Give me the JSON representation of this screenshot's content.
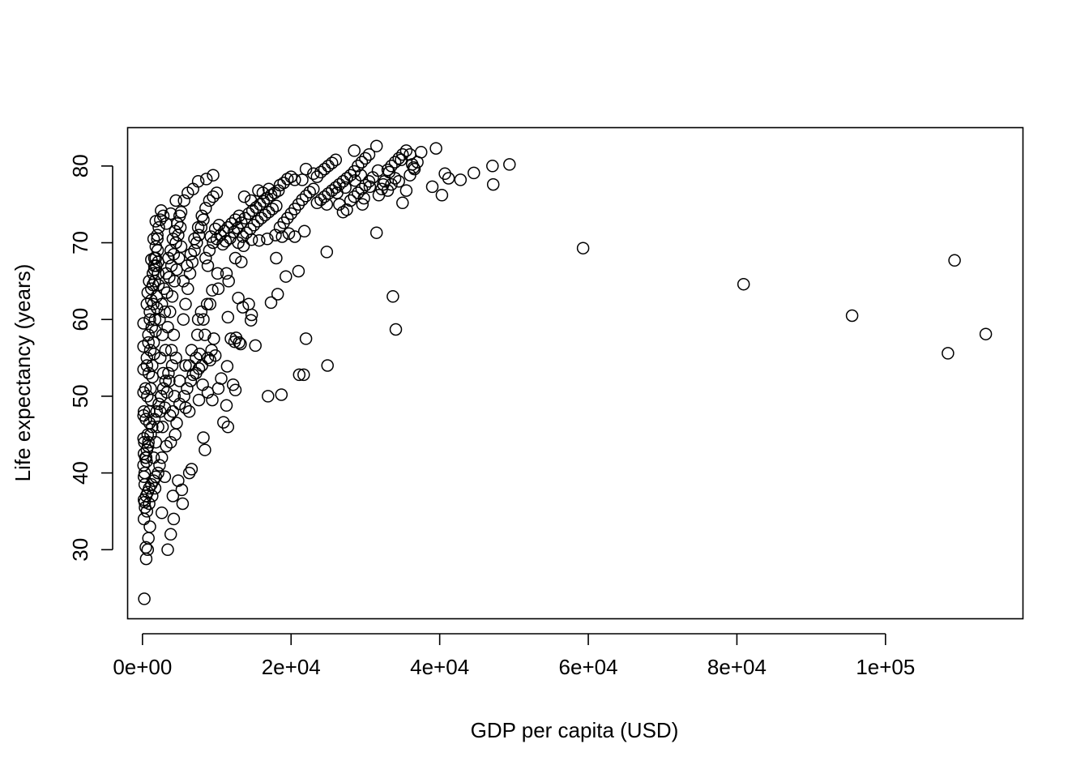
{
  "chart_data": {
    "type": "scatter",
    "title": "",
    "xlabel": "GDP per capita (USD)",
    "ylabel": "Life expectancy (years)",
    "xlim": [
      -2000,
      118500
    ],
    "ylim": [
      21,
      85
    ],
    "x_ticks": [
      0,
      20000,
      40000,
      60000,
      80000,
      100000
    ],
    "x_tick_labels": [
      "0e+00",
      "2e+04",
      "4e+04",
      "6e+04",
      "8e+04",
      "1e+05"
    ],
    "y_ticks": [
      30,
      40,
      50,
      60,
      70,
      80
    ],
    "y_tick_labels": [
      "30",
      "40",
      "50",
      "60",
      "70",
      "80"
    ],
    "grid": false,
    "legend": "none",
    "marker_color": "#000000",
    "points": [
      [
        241,
        23.6
      ],
      [
        500,
        28.8
      ],
      [
        700,
        30.0
      ],
      [
        450,
        30.3
      ],
      [
        3400,
        30.0
      ],
      [
        3800,
        32.0
      ],
      [
        800,
        31.5
      ],
      [
        1000,
        33.0
      ],
      [
        4200,
        34.0
      ],
      [
        2600,
        34.8
      ],
      [
        5400,
        36.0
      ],
      [
        300,
        36.2
      ],
      [
        500,
        37.0
      ],
      [
        700,
        37.5
      ],
      [
        900,
        38.0
      ],
      [
        1200,
        38.5
      ],
      [
        1500,
        39.0
      ],
      [
        1800,
        39.5
      ],
      [
        4100,
        37.0
      ],
      [
        5300,
        37.8
      ],
      [
        4800,
        39.0
      ],
      [
        3000,
        39.5
      ],
      [
        6300,
        40.0
      ],
      [
        6600,
        40.5
      ],
      [
        2300,
        41.0
      ],
      [
        400,
        42.0
      ],
      [
        600,
        43.0
      ],
      [
        800,
        44.0
      ],
      [
        1100,
        45.0
      ],
      [
        1300,
        46.0
      ],
      [
        1600,
        47.0
      ],
      [
        1900,
        48.0
      ],
      [
        2200,
        49.0
      ],
      [
        2500,
        50.0
      ],
      [
        2800,
        51.0
      ],
      [
        3100,
        52.0
      ],
      [
        3500,
        53.0
      ],
      [
        4000,
        54.0
      ],
      [
        4500,
        55.0
      ],
      [
        3800,
        44.0
      ],
      [
        4400,
        45.0
      ],
      [
        4600,
        46.5
      ],
      [
        4100,
        48.0
      ],
      [
        5000,
        49.0
      ],
      [
        5600,
        50.0
      ],
      [
        6000,
        51.0
      ],
      [
        6500,
        52.0
      ],
      [
        7200,
        53.0
      ],
      [
        8000,
        54.0
      ],
      [
        8400,
        43.0
      ],
      [
        8200,
        44.6
      ],
      [
        6300,
        48.0
      ],
      [
        5800,
        48.5
      ],
      [
        7600,
        49.5
      ],
      [
        8800,
        50.5
      ],
      [
        8100,
        51.5
      ],
      [
        9400,
        49.5
      ],
      [
        10200,
        51.0
      ],
      [
        10600,
        52.3
      ],
      [
        11300,
        48.8
      ],
      [
        10900,
        46.6
      ],
      [
        11500,
        46.0
      ],
      [
        12200,
        51.5
      ],
      [
        12500,
        50.8
      ],
      [
        11400,
        53.9
      ],
      [
        13200,
        56.8
      ],
      [
        13000,
        57.0
      ],
      [
        12400,
        57.1
      ],
      [
        12600,
        57.6
      ],
      [
        15200,
        56.6
      ],
      [
        11900,
        57.5
      ],
      [
        11500,
        60.3
      ],
      [
        14600,
        59.9
      ],
      [
        14700,
        60.6
      ],
      [
        14300,
        62.0
      ],
      [
        13500,
        61.6
      ],
      [
        12900,
        62.8
      ],
      [
        17300,
        62.2
      ],
      [
        18200,
        63.3
      ],
      [
        19300,
        65.6
      ],
      [
        21000,
        66.3
      ],
      [
        24800,
        68.8
      ],
      [
        18000,
        68.0
      ],
      [
        13300,
        67.5
      ],
      [
        11600,
        65.0
      ],
      [
        10100,
        66.0
      ],
      [
        9400,
        63.8
      ],
      [
        8700,
        62.0
      ],
      [
        7900,
        61.0
      ],
      [
        7500,
        60.0
      ],
      [
        8400,
        58.0
      ],
      [
        9600,
        57.5
      ],
      [
        9300,
        56.0
      ],
      [
        7700,
        55.5
      ],
      [
        7200,
        55.0
      ],
      [
        8800,
        55.0
      ],
      [
        6300,
        54.0
      ],
      [
        6800,
        52.8
      ],
      [
        7600,
        53.6
      ],
      [
        9100,
        54.7
      ],
      [
        9800,
        55.3
      ],
      [
        16900,
        50.0
      ],
      [
        18700,
        50.2
      ],
      [
        21100,
        52.8
      ],
      [
        21700,
        52.8
      ],
      [
        24900,
        54.0
      ],
      [
        22000,
        57.5
      ],
      [
        34100,
        58.7
      ],
      [
        33700,
        63.0
      ],
      [
        31500,
        71.3
      ],
      [
        59300,
        69.3
      ],
      [
        80900,
        64.6
      ],
      [
        95500,
        60.5
      ],
      [
        108400,
        55.6
      ],
      [
        109300,
        67.7
      ],
      [
        113500,
        58.1
      ],
      [
        200,
        34.0
      ],
      [
        350,
        35.5
      ],
      [
        600,
        35.0
      ],
      [
        900,
        36.0
      ],
      [
        1300,
        37.0
      ],
      [
        1700,
        38.0
      ],
      [
        2100,
        40.0
      ],
      [
        2600,
        42.0
      ],
      [
        3200,
        43.5
      ],
      [
        3700,
        47.5
      ],
      [
        4300,
        50.0
      ],
      [
        5000,
        52.0
      ],
      [
        5800,
        54.0
      ],
      [
        6600,
        56.0
      ],
      [
        7400,
        58.0
      ],
      [
        8200,
        60.0
      ],
      [
        9100,
        62.0
      ],
      [
        10200,
        64.0
      ],
      [
        11300,
        66.0
      ],
      [
        12500,
        68.0
      ],
      [
        300,
        40.0
      ],
      [
        500,
        42.0
      ],
      [
        700,
        45.0
      ],
      [
        900,
        48.0
      ],
      [
        1100,
        51.0
      ],
      [
        1300,
        54.0
      ],
      [
        1500,
        57.0
      ],
      [
        1700,
        60.0
      ],
      [
        1900,
        63.0
      ],
      [
        2100,
        66.0
      ],
      [
        250,
        44.0
      ],
      [
        450,
        47.0
      ],
      [
        650,
        50.0
      ],
      [
        850,
        53.0
      ],
      [
        1050,
        56.0
      ],
      [
        1250,
        59.0
      ],
      [
        1450,
        62.0
      ],
      [
        1650,
        65.0
      ],
      [
        1850,
        67.0
      ],
      [
        2050,
        69.0
      ],
      [
        200,
        48.0
      ],
      [
        400,
        51.0
      ],
      [
        600,
        54.0
      ],
      [
        800,
        57.0
      ],
      [
        1000,
        60.0
      ],
      [
        1200,
        62.5
      ],
      [
        1400,
        64.5
      ],
      [
        1600,
        66.5
      ],
      [
        1800,
        68.0
      ],
      [
        2000,
        70.5
      ],
      [
        300,
        38.5
      ],
      [
        550,
        41.5
      ],
      [
        750,
        43.5
      ],
      [
        950,
        46.5
      ],
      [
        1150,
        49.5
      ],
      [
        1350,
        52.5
      ],
      [
        1550,
        55.5
      ],
      [
        1750,
        58.5
      ],
      [
        1950,
        61.5
      ],
      [
        2150,
        64.5
      ],
      [
        2400,
        55.0
      ],
      [
        2700,
        58.0
      ],
      [
        3000,
        61.0
      ],
      [
        3300,
        63.5
      ],
      [
        3600,
        65.5
      ],
      [
        3900,
        67.0
      ],
      [
        4200,
        68.5
      ],
      [
        4500,
        70.0
      ],
      [
        4800,
        71.0
      ],
      [
        5100,
        72.0
      ],
      [
        2300,
        60.0
      ],
      [
        2600,
        62.0
      ],
      [
        2900,
        64.0
      ],
      [
        3200,
        66.0
      ],
      [
        3500,
        68.0
      ],
      [
        3800,
        69.0
      ],
      [
        4100,
        70.5
      ],
      [
        4400,
        71.5
      ],
      [
        4700,
        72.5
      ],
      [
        5000,
        73.5
      ],
      [
        2500,
        50.0
      ],
      [
        2800,
        53.0
      ],
      [
        3100,
        56.0
      ],
      [
        3400,
        59.0
      ],
      [
        3700,
        61.0
      ],
      [
        4000,
        63.0
      ],
      [
        4300,
        65.0
      ],
      [
        4600,
        66.5
      ],
      [
        4900,
        68.0
      ],
      [
        5200,
        69.5
      ],
      [
        1500,
        42.0
      ],
      [
        1800,
        44.0
      ],
      [
        2100,
        46.0
      ],
      [
        2400,
        48.0
      ],
      [
        2700,
        46.0
      ],
      [
        3000,
        48.5
      ],
      [
        3300,
        50.5
      ],
      [
        3600,
        52.0
      ],
      [
        3900,
        56.0
      ],
      [
        4200,
        58.0
      ],
      [
        5500,
        60.0
      ],
      [
        5800,
        62.0
      ],
      [
        6100,
        64.0
      ],
      [
        6400,
        66.0
      ],
      [
        6700,
        67.5
      ],
      [
        7000,
        69.0
      ],
      [
        7300,
        70.0
      ],
      [
        7600,
        71.0
      ],
      [
        7900,
        72.0
      ],
      [
        8200,
        73.0
      ],
      [
        5500,
        65.0
      ],
      [
        6000,
        67.0
      ],
      [
        6500,
        68.5
      ],
      [
        7000,
        70.5
      ],
      [
        7500,
        72.0
      ],
      [
        8000,
        73.5
      ],
      [
        8500,
        74.5
      ],
      [
        9000,
        75.5
      ],
      [
        9500,
        76.0
      ],
      [
        10000,
        76.5
      ],
      [
        5200,
        74.0
      ],
      [
        5600,
        75.5
      ],
      [
        6100,
        76.5
      ],
      [
        6800,
        77.0
      ],
      [
        7500,
        78.0
      ],
      [
        8600,
        78.3
      ],
      [
        9500,
        78.8
      ],
      [
        2500,
        74.2
      ],
      [
        3800,
        73.8
      ],
      [
        4500,
        75.5
      ],
      [
        1500,
        70.5
      ],
      [
        1800,
        72.8
      ],
      [
        2800,
        73.5
      ],
      [
        3200,
        72.5
      ],
      [
        2100,
        67.5
      ],
      [
        1600,
        67.0
      ],
      [
        1200,
        67.8
      ],
      [
        900,
        65.0
      ],
      [
        700,
        63.5
      ],
      [
        600,
        62.0
      ],
      [
        8500,
        68.0
      ],
      [
        9000,
        69.0
      ],
      [
        9500,
        70.0
      ],
      [
        10000,
        70.5
      ],
      [
        10500,
        71.0
      ],
      [
        11000,
        71.5
      ],
      [
        11500,
        72.0
      ],
      [
        12000,
        72.5
      ],
      [
        12500,
        73.0
      ],
      [
        13000,
        73.5
      ],
      [
        8800,
        67.0
      ],
      [
        9200,
        70.8
      ],
      [
        9800,
        71.8
      ],
      [
        10300,
        72.3
      ],
      [
        10800,
        69.8
      ],
      [
        11200,
        70.2
      ],
      [
        11800,
        70.6
      ],
      [
        12300,
        71.4
      ],
      [
        12800,
        71.9
      ],
      [
        13300,
        72.6
      ],
      [
        13800,
        73.2
      ],
      [
        14300,
        73.8
      ],
      [
        14800,
        74.2
      ],
      [
        15300,
        74.6
      ],
      [
        15800,
        75.0
      ],
      [
        16300,
        75.4
      ],
      [
        16800,
        75.8
      ],
      [
        17300,
        76.2
      ],
      [
        17800,
        76.5
      ],
      [
        18300,
        76.8
      ],
      [
        13500,
        70.8
      ],
      [
        14000,
        71.3
      ],
      [
        14500,
        71.8
      ],
      [
        15000,
        72.3
      ],
      [
        15500,
        72.8
      ],
      [
        16000,
        73.2
      ],
      [
        16500,
        73.6
      ],
      [
        17000,
        74.0
      ],
      [
        17500,
        74.4
      ],
      [
        18000,
        74.8
      ],
      [
        13700,
        76.0
      ],
      [
        14600,
        75.5
      ],
      [
        15600,
        76.8
      ],
      [
        16200,
        76.5
      ],
      [
        17000,
        77.0
      ],
      [
        18500,
        77.5
      ],
      [
        19000,
        77.8
      ],
      [
        19500,
        78.3
      ],
      [
        20000,
        78.6
      ],
      [
        20500,
        78.2
      ],
      [
        18500,
        72.0
      ],
      [
        19000,
        72.6
      ],
      [
        19500,
        73.2
      ],
      [
        20000,
        73.8
      ],
      [
        20500,
        74.4
      ],
      [
        21000,
        75.0
      ],
      [
        21500,
        75.6
      ],
      [
        22000,
        76.1
      ],
      [
        22500,
        76.6
      ],
      [
        23000,
        77.0
      ],
      [
        18800,
        70.8
      ],
      [
        19700,
        71.2
      ],
      [
        20500,
        70.8
      ],
      [
        21800,
        71.5
      ],
      [
        17900,
        71.0
      ],
      [
        16800,
        70.5
      ],
      [
        15700,
        70.3
      ],
      [
        14700,
        70.4
      ],
      [
        13600,
        69.6
      ],
      [
        12900,
        70.0
      ],
      [
        21500,
        78.2
      ],
      [
        22000,
        79.6
      ],
      [
        23000,
        79.0
      ],
      [
        23500,
        78.6
      ],
      [
        24000,
        79.2
      ],
      [
        24500,
        79.6
      ],
      [
        25000,
        80.0
      ],
      [
        25500,
        80.4
      ],
      [
        26000,
        80.8
      ],
      [
        24800,
        75.0
      ],
      [
        23500,
        75.2
      ],
      [
        24000,
        75.6
      ],
      [
        24500,
        76.0
      ],
      [
        25000,
        76.4
      ],
      [
        25500,
        76.8
      ],
      [
        26000,
        77.2
      ],
      [
        26500,
        77.6
      ],
      [
        27000,
        78.0
      ],
      [
        27500,
        78.4
      ],
      [
        28000,
        78.8
      ],
      [
        26500,
        75.0
      ],
      [
        27000,
        74.0
      ],
      [
        27500,
        74.3
      ],
      [
        28000,
        75.5
      ],
      [
        28500,
        76.0
      ],
      [
        29000,
        76.5
      ],
      [
        29500,
        77.0
      ],
      [
        30000,
        77.5
      ],
      [
        30500,
        78.0
      ],
      [
        31000,
        78.5
      ],
      [
        28500,
        79.3
      ],
      [
        29000,
        80.0
      ],
      [
        29500,
        80.5
      ],
      [
        30000,
        81.0
      ],
      [
        30500,
        81.5
      ],
      [
        31500,
        82.6
      ],
      [
        28500,
        82.0
      ],
      [
        29600,
        75.0
      ],
      [
        29800,
        75.8
      ],
      [
        30600,
        77.3
      ],
      [
        31800,
        76.2
      ],
      [
        32200,
        77.0
      ],
      [
        32600,
        78.0
      ],
      [
        33000,
        79.5
      ],
      [
        33500,
        80.0
      ],
      [
        34000,
        80.5
      ],
      [
        34500,
        81.0
      ],
      [
        35000,
        81.5
      ],
      [
        35500,
        82.0
      ],
      [
        36000,
        81.5
      ],
      [
        33000,
        76.8
      ],
      [
        33500,
        77.6
      ],
      [
        34000,
        78.4
      ],
      [
        34500,
        78.0
      ],
      [
        35000,
        75.2
      ],
      [
        35500,
        76.8
      ],
      [
        36000,
        78.8
      ],
      [
        36500,
        79.8
      ],
      [
        37000,
        80.5
      ],
      [
        37500,
        81.8
      ],
      [
        39500,
        82.3
      ],
      [
        39000,
        77.3
      ],
      [
        40300,
        76.2
      ],
      [
        40700,
        79.0
      ],
      [
        41200,
        78.4
      ],
      [
        42800,
        78.2
      ],
      [
        44600,
        79.1
      ],
      [
        47100,
        80.0
      ],
      [
        47200,
        77.6
      ],
      [
        49400,
        80.2
      ],
      [
        36300,
        80.2
      ],
      [
        36600,
        79.6
      ],
      [
        34800,
        80.8
      ],
      [
        33200,
        79.2
      ],
      [
        32400,
        77.6
      ],
      [
        31700,
        79.4
      ],
      [
        29400,
        78.8
      ],
      [
        28600,
        78.1
      ],
      [
        27300,
        77.2
      ],
      [
        26200,
        76.5
      ],
      [
        600,
        55.0
      ],
      [
        800,
        58.0
      ],
      [
        1000,
        61.0
      ],
      [
        1200,
        64.0
      ],
      [
        1400,
        66.0
      ],
      [
        1600,
        68.0
      ],
      [
        1800,
        69.5
      ],
      [
        2000,
        71.0
      ],
      [
        2200,
        72.0
      ],
      [
        2400,
        73.0
      ],
      [
        150,
        41.0
      ],
      [
        150,
        44.5
      ],
      [
        150,
        47.5
      ],
      [
        150,
        50.5
      ],
      [
        150,
        53.5
      ],
      [
        150,
        56.5
      ],
      [
        150,
        59.5
      ],
      [
        200,
        36.5
      ],
      [
        200,
        39.5
      ],
      [
        200,
        42.5
      ]
    ]
  }
}
